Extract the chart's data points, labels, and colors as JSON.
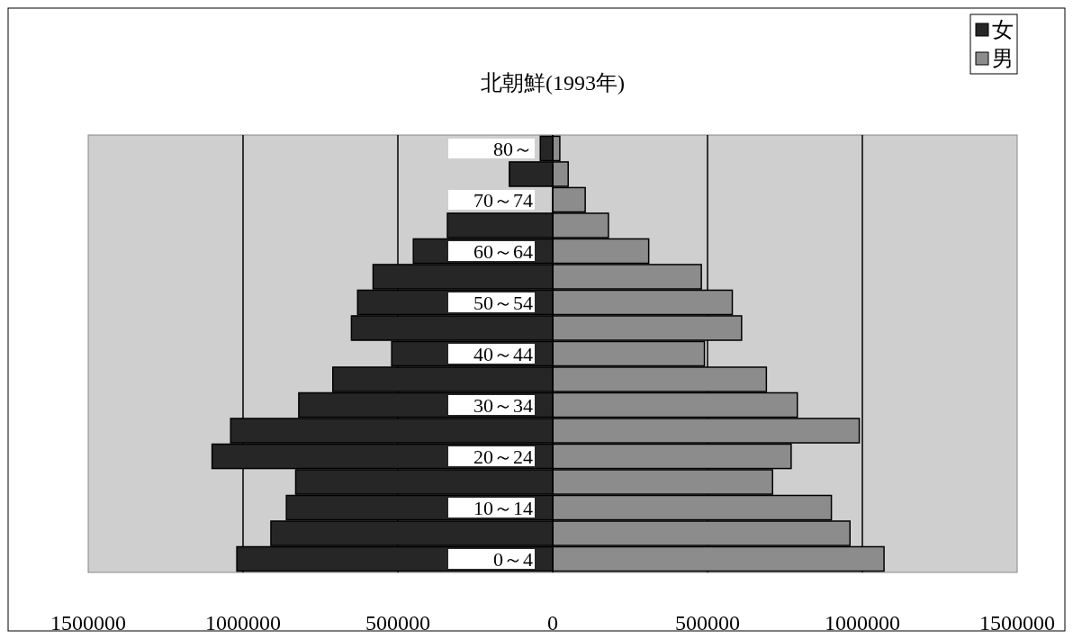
{
  "chart_data": {
    "type": "bar",
    "orientation": "horizontal",
    "title": "北朝鮮(1993年)",
    "categories": [
      "80～",
      null,
      "70～74",
      null,
      "60～64",
      null,
      "50～54",
      null,
      "40～44",
      null,
      "30～34",
      null,
      "20～24",
      null,
      "10～14",
      null,
      "0～4"
    ],
    "series": [
      {
        "name": "女",
        "color": "#262626",
        "values": [
          -40000,
          -140000,
          null,
          -340000,
          -450000,
          -580000,
          -630000,
          -650000,
          -520000,
          -710000,
          -820000,
          -1040000,
          -1100000,
          -830000,
          -860000,
          -910000,
          -1020000
        ]
      },
      {
        "name": "男",
        "color": "#8c8c8c",
        "values": [
          23000,
          50000,
          105000,
          180000,
          310000,
          480000,
          580000,
          610000,
          490000,
          690000,
          790000,
          990000,
          770000,
          710000,
          900000,
          960000,
          1070000
        ]
      }
    ],
    "xlim": [
      -1500000,
      1500000
    ],
    "xticks": [
      {
        "value": -1500000,
        "label": "1500000"
      },
      {
        "value": -1000000,
        "label": "1000000"
      },
      {
        "value": -500000,
        "label": "500000"
      },
      0,
      500000,
      1000000,
      1500000
    ],
    "stacked": true,
    "grid": "x",
    "legend": "top right"
  }
}
